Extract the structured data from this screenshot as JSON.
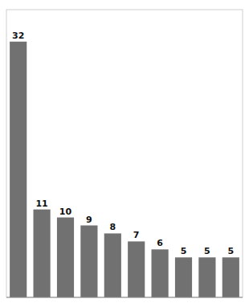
{
  "chart_data": {
    "type": "bar",
    "categories": [
      null,
      null,
      null,
      null,
      null,
      null,
      null,
      null,
      null,
      null
    ],
    "values": [
      32,
      11,
      10,
      9,
      8,
      7,
      6,
      5,
      5,
      5
    ],
    "color": "#717171",
    "ylim": [
      0,
      36
    ],
    "grid": false,
    "tick_labels": false,
    "data_labels": true
  }
}
